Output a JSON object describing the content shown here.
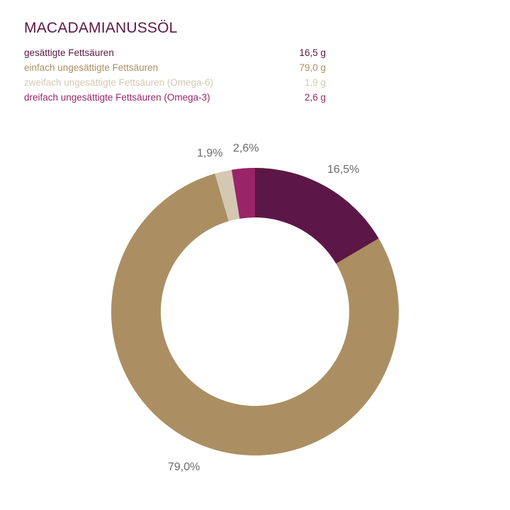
{
  "title": "MACADAMIANUSSÖL",
  "legend": [
    {
      "label": "gesättigte Fettsäuren",
      "value": "16,5 g",
      "color": "#5c1746"
    },
    {
      "label": "einfach ungesättigte Fettsäuren",
      "value": "79,0 g",
      "color": "#ab8f62"
    },
    {
      "label": "zweifach ungesättigte Fettsäuren (Omega-6)",
      "value": "1,9 g",
      "color": "#d4c8b3"
    },
    {
      "label": "dreifach ungesättigte Fettsäuren (Omega-3)",
      "value": "2,6 g",
      "color": "#9a2468"
    }
  ],
  "chart_data": {
    "type": "pie",
    "variant": "donut",
    "title": "MACADAMIANUSSÖL",
    "categories": [
      "gesättigte Fettsäuren",
      "einfach ungesättigte Fettsäuren",
      "zweifach ungesättigte Fettsäuren (Omega-6)",
      "dreifach ungesättigte Fettsäuren (Omega-3)"
    ],
    "values": [
      16.5,
      79.0,
      1.9,
      2.6
    ],
    "unit": "g",
    "data_labels": [
      "16,5%",
      "79,0%",
      "1,9%",
      "2,6%"
    ],
    "colors": [
      "#5c1746",
      "#ab8f62",
      "#d4c8b3",
      "#9a2468"
    ],
    "start_angle": "12 o'clock",
    "direction": "clockwise",
    "legend_position": "top-left"
  }
}
